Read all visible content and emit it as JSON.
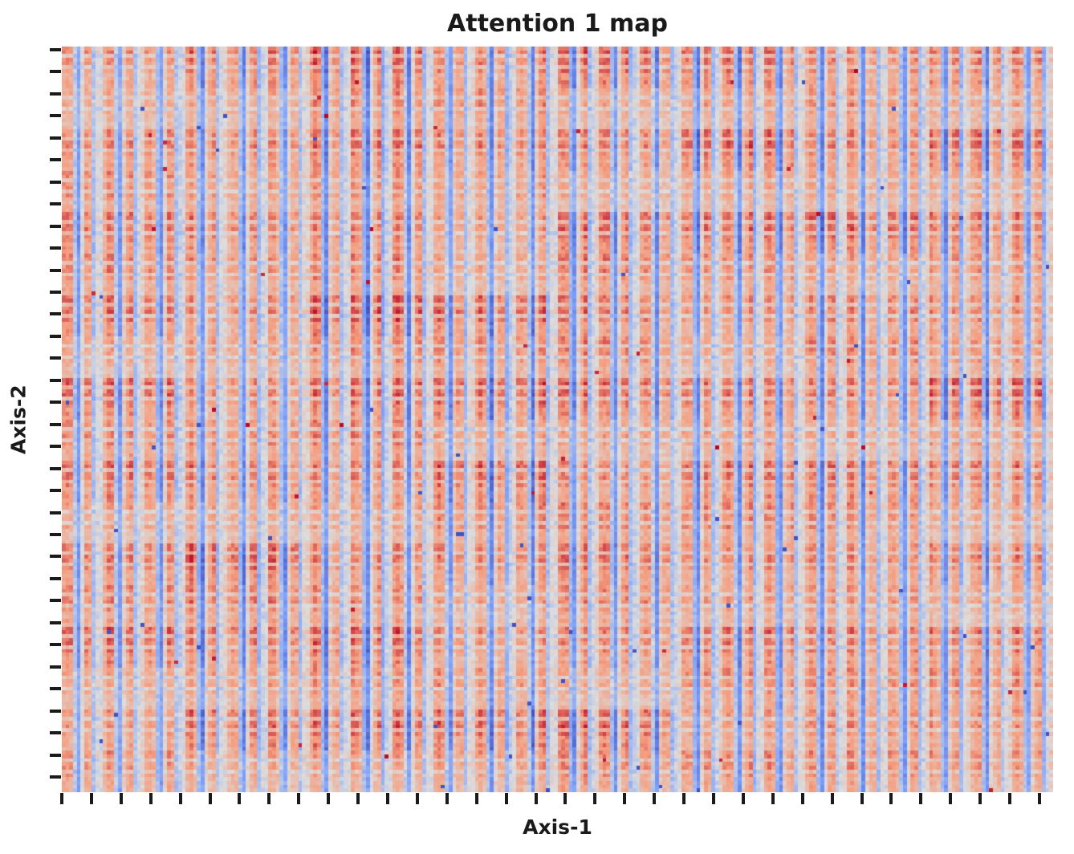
{
  "figure": {
    "background": "#ffffff",
    "text_color": "#1a1a1a"
  },
  "chart_data": {
    "type": "heatmap",
    "title": "Attention 1 map",
    "xlabel": "Axis-1",
    "ylabel": "Axis-2",
    "legend": "none",
    "grid_lines": "off",
    "x_tick_labels": [],
    "y_tick_labels": [],
    "x_tick_count": 34,
    "y_tick_count": 34,
    "grid": {
      "rows": 198,
      "cols": 264
    },
    "colormap": {
      "name": "coolwarm",
      "stops": [
        {
          "t": 0.0,
          "hex": "#3b4cc0"
        },
        {
          "t": 0.25,
          "hex": "#7c9ff9"
        },
        {
          "t": 0.5,
          "hex": "#dddddd"
        },
        {
          "t": 0.75,
          "hex": "#f59c7d"
        },
        {
          "t": 1.0,
          "hex": "#b40426"
        }
      ]
    },
    "pattern": {
      "description": "periodic attention texture: clusters of warm (salmon) columns and rows separated by cool (blue) bands, dark navy separator lines, washed-out pale bands, sparse red/navy outlier cells",
      "seed": 7,
      "period": 11,
      "col_profile": [
        0.71,
        0.74,
        0.7,
        0.36,
        0.18,
        0.55,
        0.7,
        0.72,
        0.33,
        0.47,
        0.52
      ],
      "row_profile": [
        0.68,
        0.71,
        0.3,
        0.66,
        0.7,
        0.28,
        0.64,
        0.5,
        0.46,
        0.52,
        0.48
      ],
      "noise": 0.11,
      "red_outlier_rate": 0.0009,
      "navy_outlier_rate": 0.0013
    },
    "axis_color": "#1a1a1a"
  }
}
